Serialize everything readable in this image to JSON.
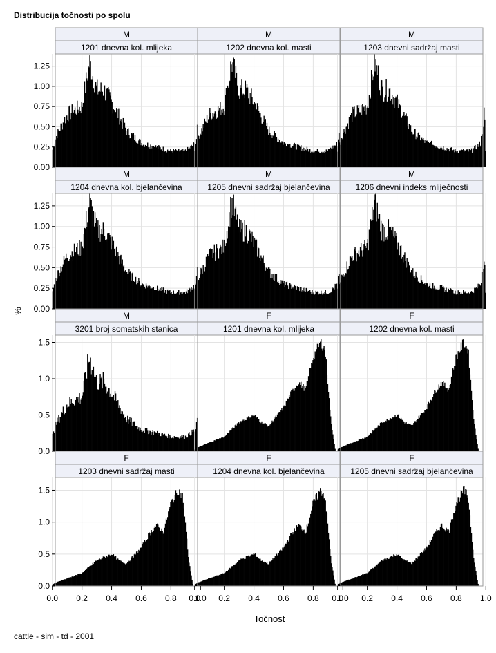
{
  "title": "Distribucija točnosti po spolu",
  "footnote": "cattle - sim - td - 2001",
  "chart_data": {
    "type": "bar",
    "xlabel": "Točnost",
    "ylabel": "%",
    "xlim": [
      0.0,
      1.0
    ],
    "xticks": [
      "0.0",
      "0.2",
      "0.4",
      "0.6",
      "0.8",
      "1.0"
    ],
    "grid": true,
    "bar_color": "#000000",
    "rows": [
      {
        "ylim": [
          0,
          1.4
        ],
        "yticks": [
          "0.00",
          "0.25",
          "0.50",
          "0.75",
          "1.00",
          "1.25"
        ]
      },
      {
        "ylim": [
          0,
          1.4
        ],
        "yticks": [
          "0.00",
          "0.25",
          "0.50",
          "0.75",
          "1.00",
          "1.25"
        ]
      },
      {
        "ylim": [
          0,
          1.6
        ],
        "yticks": [
          "0.0",
          "0.5",
          "1.0",
          "1.5"
        ]
      },
      {
        "ylim": [
          0,
          1.7
        ],
        "yticks": [
          "0.0",
          "0.5",
          "1.0",
          "1.5"
        ]
      }
    ],
    "profiles": {
      "M": {
        "x": [
          0.0,
          0.03,
          0.1,
          0.2,
          0.25,
          0.3,
          0.35,
          0.4,
          0.5,
          0.6,
          0.7,
          0.8,
          0.9,
          0.97,
          0.99,
          1.0
        ],
        "y": [
          0.2,
          0.4,
          0.65,
          0.75,
          1.3,
          0.95,
          0.95,
          0.8,
          0.45,
          0.3,
          0.25,
          0.2,
          0.2,
          0.3,
          0.72,
          0.0
        ]
      },
      "F": {
        "x": [
          0.0,
          0.02,
          0.1,
          0.2,
          0.3,
          0.35,
          0.4,
          0.45,
          0.5,
          0.6,
          0.65,
          0.7,
          0.75,
          0.8,
          0.85,
          0.88,
          0.92,
          0.95,
          1.0
        ],
        "y": [
          0.02,
          0.05,
          0.12,
          0.2,
          0.4,
          0.45,
          0.5,
          0.4,
          0.35,
          0.6,
          0.8,
          0.95,
          0.85,
          1.3,
          1.5,
          1.4,
          0.4,
          0.0,
          0.0
        ]
      }
    },
    "panels": [
      {
        "sex": "M",
        "label": "1201 dnevna kol. mlijeka"
      },
      {
        "sex": "M",
        "label": "1202 dnevna kol. masti"
      },
      {
        "sex": "M",
        "label": "1203 dnevni sadržaj masti"
      },
      {
        "sex": "M",
        "label": "1204 dnevna kol. bjelančevina"
      },
      {
        "sex": "M",
        "label": "1205 dnevni sadržaj bjelančevina"
      },
      {
        "sex": "M",
        "label": "1206 dnevni indeks mliječnosti"
      },
      {
        "sex": "M",
        "label": "3201 broj somatskih stanica"
      },
      {
        "sex": "F",
        "label": "1201 dnevna kol. mlijeka"
      },
      {
        "sex": "F",
        "label": "1202 dnevna kol. masti"
      },
      {
        "sex": "F",
        "label": "1203 dnevni sadržaj masti"
      },
      {
        "sex": "F",
        "label": "1204 dnevna kol. bjelančevina"
      },
      {
        "sex": "F",
        "label": "1205 dnevni sadržaj bjelančevina"
      }
    ]
  }
}
